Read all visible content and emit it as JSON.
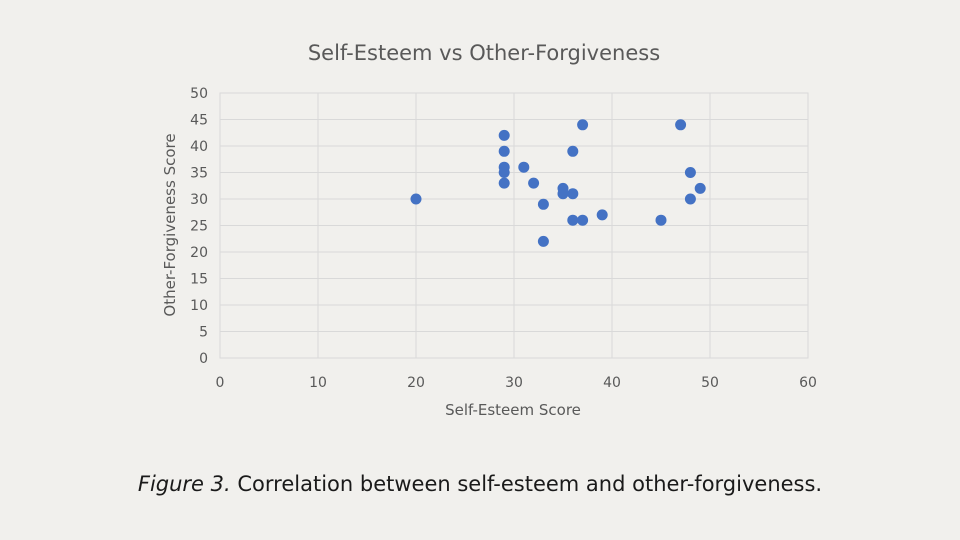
{
  "chart_data": {
    "type": "scatter",
    "title": "Self-Esteem vs Other-Forgiveness",
    "xlabel": "Self-Esteem Score",
    "ylabel": "Other-Forgiveness Score",
    "xlim": [
      0,
      60
    ],
    "ylim": [
      0,
      50
    ],
    "xticks": [
      0,
      10,
      20,
      30,
      40,
      50,
      60
    ],
    "yticks": [
      0,
      5,
      10,
      15,
      20,
      25,
      30,
      35,
      40,
      45,
      50
    ],
    "grid": true,
    "marker_color": "#4472c4",
    "points": [
      {
        "x": 20,
        "y": 30
      },
      {
        "x": 29,
        "y": 42
      },
      {
        "x": 29,
        "y": 39
      },
      {
        "x": 29,
        "y": 36
      },
      {
        "x": 29,
        "y": 35
      },
      {
        "x": 29,
        "y": 33
      },
      {
        "x": 31,
        "y": 36
      },
      {
        "x": 32,
        "y": 33
      },
      {
        "x": 33,
        "y": 29
      },
      {
        "x": 33,
        "y": 22
      },
      {
        "x": 35,
        "y": 32
      },
      {
        "x": 35,
        "y": 31
      },
      {
        "x": 36,
        "y": 39
      },
      {
        "x": 36,
        "y": 31
      },
      {
        "x": 36,
        "y": 26
      },
      {
        "x": 37,
        "y": 44
      },
      {
        "x": 37,
        "y": 26
      },
      {
        "x": 39,
        "y": 27
      },
      {
        "x": 45,
        "y": 26
      },
      {
        "x": 47,
        "y": 44
      },
      {
        "x": 48,
        "y": 35
      },
      {
        "x": 48,
        "y": 30
      },
      {
        "x": 49,
        "y": 32
      }
    ]
  },
  "caption": {
    "figure_label": "Figure 3.",
    "text": "Correlation between self-esteem and other-forgiveness."
  }
}
